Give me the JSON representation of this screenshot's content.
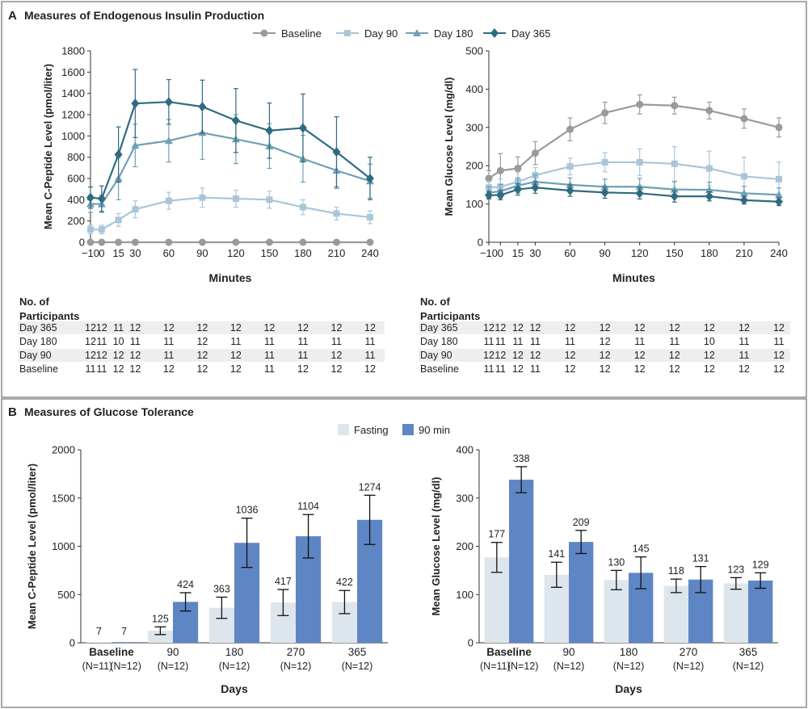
{
  "panel_a": {
    "letter": "A",
    "title": "Measures of Endogenous Insulin Production",
    "legend": [
      {
        "label": "Baseline",
        "color": "#9a9a9a",
        "marker": "circle"
      },
      {
        "label": "Day 90",
        "color": "#a9c6d9",
        "marker": "square"
      },
      {
        "label": "Day 180",
        "color": "#6f9fb5",
        "marker": "triangle"
      },
      {
        "label": "Day 365",
        "color": "#2f6b80",
        "marker": "diamond"
      }
    ],
    "participants_header": [
      "No. of",
      "Participants"
    ]
  },
  "panel_b": {
    "letter": "B",
    "title": "Measures of Glucose Tolerance",
    "legend": [
      {
        "label": "Fasting",
        "color": "#dde6ec"
      },
      {
        "label": "90 min",
        "color": "#5f86c4"
      }
    ]
  },
  "chart_data": [
    {
      "id": "cpeptide_curve",
      "type": "line",
      "ylabel": "Mean C-Peptide Level (pmol/liter)",
      "xlabel": "Minutes",
      "x": [
        -10,
        0,
        15,
        30,
        60,
        90,
        120,
        150,
        180,
        210,
        240
      ],
      "x_ticks": [
        "−10",
        "0",
        "15",
        "30",
        "60",
        "90",
        "120",
        "150",
        "180",
        "210",
        "240"
      ],
      "xlim": [
        -10,
        240
      ],
      "ylim": [
        0,
        1800
      ],
      "y_ticks": [
        0,
        200,
        400,
        600,
        800,
        1000,
        1200,
        1400,
        1600,
        1800
      ],
      "series": [
        {
          "name": "Baseline",
          "values": [
            0,
            0,
            0,
            0,
            0,
            0,
            0,
            0,
            0,
            0,
            0
          ],
          "err": [
            0,
            0,
            0,
            0,
            0,
            0,
            0,
            0,
            0,
            0,
            0
          ]
        },
        {
          "name": "Day 90",
          "values": [
            120,
            120,
            210,
            310,
            390,
            420,
            410,
            400,
            330,
            270,
            235
          ],
          "err": [
            40,
            40,
            60,
            80,
            80,
            90,
            80,
            80,
            70,
            60,
            60
          ]
        },
        {
          "name": "Day 180",
          "values": [
            360,
            360,
            600,
            910,
            955,
            1030,
            970,
            905,
            785,
            675,
            575
          ],
          "err": [
            80,
            80,
            200,
            200,
            200,
            250,
            230,
            210,
            220,
            170,
            160
          ]
        },
        {
          "name": "Day 365",
          "values": [
            420,
            410,
            825,
            1305,
            1320,
            1275,
            1145,
            1050,
            1075,
            850,
            600
          ],
          "err": [
            100,
            120,
            260,
            320,
            210,
            250,
            300,
            260,
            320,
            330,
            200
          ]
        }
      ],
      "participants": {
        "rows": [
          "Day 365",
          "Day 180",
          "Day 90",
          "Baseline"
        ],
        "values": [
          [
            12,
            12,
            11,
            12,
            12,
            12,
            12,
            12,
            12,
            12,
            12
          ],
          [
            12,
            11,
            10,
            11,
            11,
            12,
            11,
            11,
            11,
            11,
            11
          ],
          [
            12,
            12,
            12,
            12,
            11,
            12,
            12,
            11,
            11,
            12,
            11
          ],
          [
            11,
            11,
            12,
            12,
            12,
            12,
            12,
            11,
            12,
            12,
            12
          ]
        ]
      }
    },
    {
      "id": "glucose_curve",
      "type": "line",
      "ylabel": "Mean Glucose Level (mg/dl)",
      "xlabel": "Minutes",
      "x": [
        -10,
        0,
        15,
        30,
        60,
        90,
        120,
        150,
        180,
        210,
        240
      ],
      "x_ticks": [
        "−10",
        "0",
        "15",
        "30",
        "60",
        "90",
        "120",
        "150",
        "180",
        "210",
        "240"
      ],
      "xlim": [
        -10,
        240
      ],
      "ylim": [
        0,
        500
      ],
      "y_ticks": [
        0,
        100,
        200,
        300,
        400,
        500
      ],
      "series": [
        {
          "name": "Baseline",
          "values": [
            167,
            187,
            193,
            233,
            295,
            338,
            360,
            357,
            344,
            323,
            300
          ],
          "err": [
            20,
            45,
            30,
            30,
            30,
            28,
            25,
            22,
            22,
            25,
            25
          ]
        },
        {
          "name": "Day 90",
          "values": [
            143,
            145,
            158,
            175,
            198,
            209,
            209,
            205,
            193,
            172,
            165
          ],
          "err": [
            15,
            20,
            25,
            20,
            22,
            25,
            35,
            45,
            45,
            50,
            45
          ]
        },
        {
          "name": "Day 180",
          "values": [
            130,
            133,
            148,
            158,
            150,
            145,
            145,
            138,
            137,
            128,
            124
          ],
          "err": [
            15,
            18,
            20,
            18,
            18,
            20,
            22,
            20,
            20,
            18,
            18
          ]
        },
        {
          "name": "Day 365",
          "values": [
            123,
            123,
            138,
            143,
            135,
            130,
            128,
            120,
            120,
            110,
            106
          ],
          "err": [
            10,
            12,
            15,
            15,
            15,
            15,
            15,
            15,
            12,
            10,
            10
          ]
        }
      ],
      "participants": {
        "rows": [
          "Day 365",
          "Day 180",
          "Day 90",
          "Baseline"
        ],
        "values": [
          [
            12,
            12,
            12,
            12,
            12,
            12,
            12,
            12,
            12,
            12,
            12
          ],
          [
            11,
            11,
            11,
            11,
            11,
            12,
            11,
            11,
            10,
            11,
            11
          ],
          [
            12,
            12,
            12,
            12,
            12,
            12,
            12,
            12,
            12,
            11,
            12
          ],
          [
            11,
            11,
            12,
            11,
            12,
            12,
            12,
            12,
            12,
            12,
            12
          ]
        ]
      }
    },
    {
      "id": "cpeptide_bars",
      "type": "bar",
      "ylabel": "Mean C-Peptide Level (pmol/liter)",
      "xlabel": "Days",
      "ylim": [
        0,
        2000
      ],
      "y_ticks": [
        0,
        500,
        1000,
        1500,
        2000
      ],
      "categories": [
        "Baseline",
        "90",
        "180",
        "270",
        "365"
      ],
      "category_n": [
        [
          "(N=11)",
          "(N=12)"
        ],
        [
          "(N=12)"
        ],
        [
          "(N=12)"
        ],
        [
          "(N=12)"
        ],
        [
          "(N=12)"
        ]
      ],
      "series": [
        {
          "name": "Fasting",
          "values": [
            7,
            125,
            363,
            417,
            422
          ],
          "err": [
            0,
            40,
            110,
            135,
            120
          ]
        },
        {
          "name": "90 min",
          "values": [
            7,
            424,
            1036,
            1104,
            1274
          ],
          "err": [
            0,
            95,
            255,
            225,
            255
          ]
        }
      ]
    },
    {
      "id": "glucose_bars",
      "type": "bar",
      "ylabel": "Mean Glucose Level (mg/dl)",
      "xlabel": "Days",
      "ylim": [
        0,
        400
      ],
      "y_ticks": [
        0,
        100,
        200,
        300,
        400
      ],
      "categories": [
        "Baseline",
        "90",
        "180",
        "270",
        "365"
      ],
      "category_n": [
        [
          "(N=11)",
          "(N=12)"
        ],
        [
          "(N=12)"
        ],
        [
          "(N=12)"
        ],
        [
          "(N=12)"
        ],
        [
          "(N=12)"
        ]
      ],
      "series": [
        {
          "name": "Fasting",
          "values": [
            177,
            141,
            130,
            118,
            123
          ],
          "err": [
            31,
            26,
            20,
            14,
            12
          ]
        },
        {
          "name": "90 min",
          "values": [
            338,
            209,
            145,
            131,
            129
          ],
          "err": [
            27,
            24,
            33,
            27,
            16
          ]
        }
      ]
    }
  ]
}
